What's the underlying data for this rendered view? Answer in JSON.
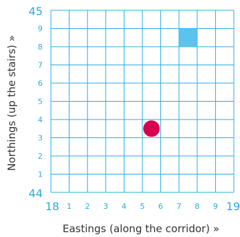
{
  "colors": {
    "grid": "#29abe2",
    "tick_label": "#29abe2",
    "axis_title": "#333333",
    "square_marker": "#5bc3ee",
    "circle_marker": "#d6004f"
  },
  "x_axis": {
    "title": "Eastings (along the corridor) »",
    "major_start": "18",
    "major_end": "19",
    "minor_ticks": [
      "1",
      "2",
      "3",
      "4",
      "5",
      "6",
      "7",
      "8",
      "9"
    ]
  },
  "y_axis": {
    "title": "Northings (up the stairs) »",
    "major_start": "44",
    "major_end": "45",
    "minor_ticks": [
      "1",
      "2",
      "3",
      "4",
      "5",
      "6",
      "7",
      "8",
      "9"
    ]
  },
  "markers": [
    {
      "name": "square-marker",
      "shape": "square",
      "easting": 7.5,
      "northing": 8.5
    },
    {
      "name": "circle-marker",
      "shape": "circle",
      "easting": 5.5,
      "northing": 3.5
    }
  ]
}
